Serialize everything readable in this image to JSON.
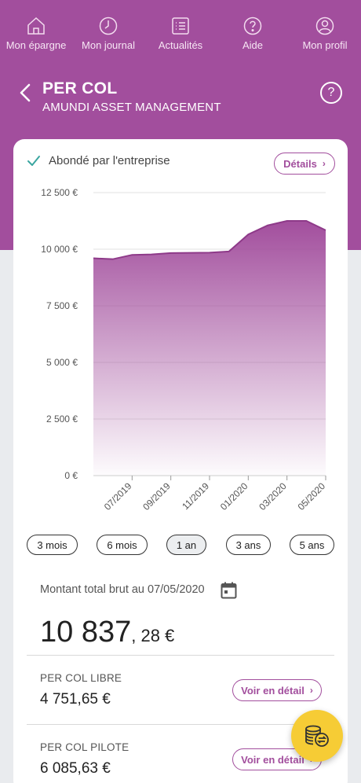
{
  "nav": {
    "items": [
      {
        "label": "Mon épargne",
        "icon": "piggy-home-icon"
      },
      {
        "label": "Mon journal",
        "icon": "clock-icon"
      },
      {
        "label": "Actualités",
        "icon": "news-list-icon"
      },
      {
        "label": "Aide",
        "icon": "help-circle-icon"
      },
      {
        "label": "Mon profil",
        "icon": "user-circle-icon"
      }
    ]
  },
  "header": {
    "title": "PER COL",
    "subtitle": "AMUNDI ASSET MANAGEMENT",
    "help_label": "?"
  },
  "card": {
    "abonde_text": "Abondé par l'entreprise",
    "details_label": "Détails",
    "periods": [
      "3 mois",
      "6 mois",
      "1 an",
      "3 ans",
      "5 ans"
    ],
    "active_period": "1 an",
    "total_label": "Montant total brut au 07/05/2020",
    "total_int": "10 837",
    "total_dec": ", 28 €",
    "funds": [
      {
        "name": "PER COL LIBRE",
        "value": "4 751,65 €",
        "button": "Voir en détail"
      },
      {
        "name": "PER COL PILOTE",
        "value": "6 085,63 €",
        "button": "Voir en détail"
      }
    ]
  },
  "colors": {
    "brand": "#a24e9d",
    "fab": "#f6cc35",
    "check": "#3aa6a0"
  },
  "chart_data": {
    "type": "area",
    "x": [
      "05/2019",
      "06/2019",
      "07/2019",
      "08/2019",
      "09/2019",
      "10/2019",
      "11/2019",
      "12/2019",
      "01/2020",
      "02/2020",
      "03/2020",
      "04/2020",
      "05/2020"
    ],
    "values": [
      9600,
      9560,
      9750,
      9770,
      9830,
      9840,
      9850,
      9900,
      10650,
      11050,
      11250,
      11250,
      10837
    ],
    "xticks": [
      "07/2019",
      "09/2019",
      "11/2019",
      "01/2020",
      "03/2020",
      "05/2020"
    ],
    "yticks": [
      "0 €",
      "2 500 €",
      "5 000 €",
      "7 500 €",
      "10 000 €",
      "12 500 €"
    ],
    "ytick_values": [
      0,
      2500,
      5000,
      7500,
      10000,
      12500
    ],
    "ylim": [
      0,
      12500
    ],
    "grid": true,
    "color": "#a24e9d"
  }
}
